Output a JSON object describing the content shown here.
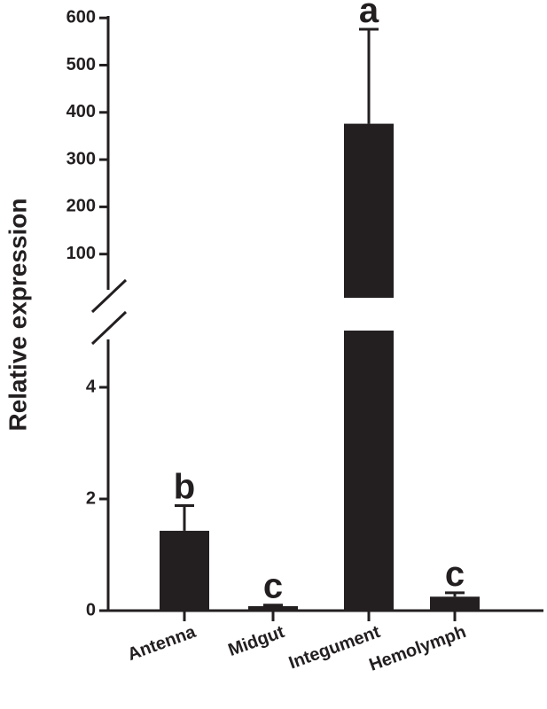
{
  "chart_data": {
    "type": "bar",
    "categories": [
      "Antenna",
      "Midgut",
      "Integument",
      "Hemolymph"
    ],
    "values": [
      1.43,
      0.08,
      376,
      0.25
    ],
    "error": [
      0.45,
      0.02,
      200,
      0.07
    ],
    "significance": [
      "b",
      "c",
      "a",
      "c"
    ],
    "title": "",
    "xlabel": "",
    "ylabel": "Relative expression",
    "axis_break": true,
    "ylim_lower": [
      0,
      5.3
    ],
    "ylim_upper": [
      0,
      600
    ],
    "yticks_lower": [
      "0",
      "2",
      "4"
    ],
    "yticks_upper": [
      "100",
      "200",
      "300",
      "400",
      "500",
      "600"
    ],
    "bar_color": "#231f20",
    "grid": false,
    "legend": "none"
  }
}
